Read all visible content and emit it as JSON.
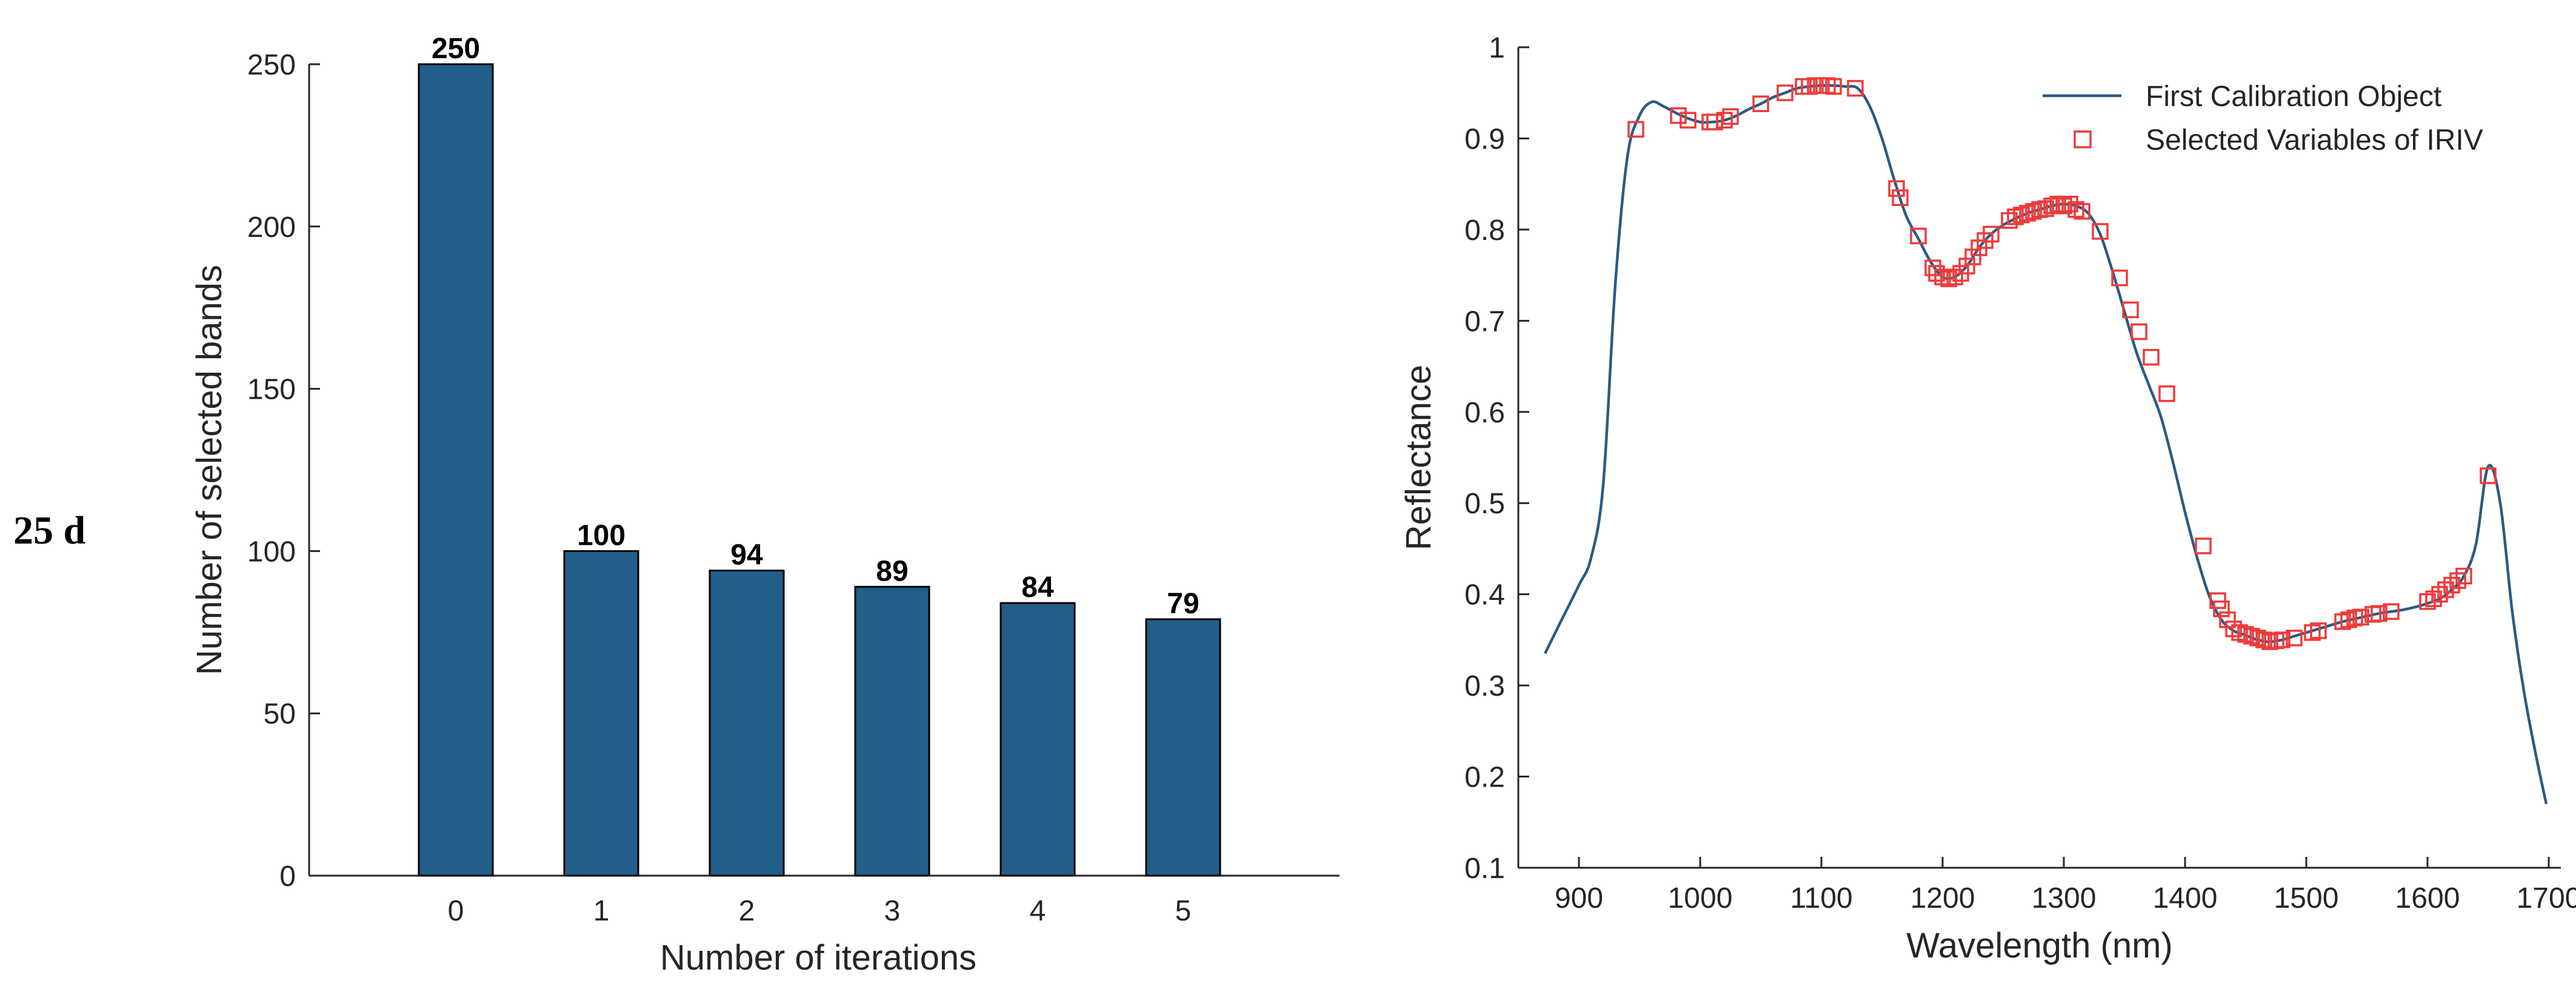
{
  "panel_label": "25 d",
  "colors": {
    "bar_fill": "#215E8A",
    "bar_stroke": "#000000",
    "line": "#2A5B84",
    "marker": "#EE3B3B",
    "axis": "#262626"
  },
  "chart_data": [
    {
      "type": "bar",
      "title": "",
      "categories": [
        "0",
        "1",
        "2",
        "3",
        "4",
        "5"
      ],
      "values": [
        250,
        100,
        94,
        89,
        84,
        79
      ],
      "data_labels": [
        "250",
        "100",
        "94",
        "89",
        "84",
        "79"
      ],
      "xlabel": "Number of iterations",
      "ylabel": "Number of selected bands",
      "ylim": [
        0,
        250
      ],
      "yticks": [
        0,
        50,
        100,
        150,
        200,
        250
      ],
      "ytick_labels": [
        "0",
        "50",
        "100",
        "150",
        "200",
        "250"
      ],
      "grid": false
    },
    {
      "type": "line",
      "title": "",
      "xlabel": "Wavelength (nm)",
      "ylabel": "Reflectance",
      "xlim": [
        850,
        1710
      ],
      "ylim": [
        0.1,
        1.0
      ],
      "xticks": [
        900,
        1000,
        1100,
        1200,
        1300,
        1400,
        1500,
        1600,
        1700
      ],
      "xtick_labels": [
        "900",
        "1000",
        "1100",
        "1200",
        "1300",
        "1400",
        "1500",
        "1600",
        "1700"
      ],
      "yticks": [
        0.1,
        0.2,
        0.3,
        0.4,
        0.5,
        0.6,
        0.7,
        0.8,
        0.9,
        1.0
      ],
      "ytick_labels": [
        "0.1",
        "0.2",
        "0.3",
        "0.4",
        "0.5",
        "0.6",
        "0.7",
        "0.8",
        "0.9",
        "1"
      ],
      "legend_position": "top-right",
      "grid": false,
      "series": [
        {
          "name": "First Calibration Object",
          "kind": "line",
          "x": [
            872,
            885,
            900,
            910,
            920,
            930,
            940,
            950,
            960,
            970,
            980,
            990,
            1000,
            1010,
            1020,
            1030,
            1040,
            1050,
            1060,
            1070,
            1080,
            1090,
            1100,
            1110,
            1120,
            1130,
            1140,
            1150,
            1160,
            1170,
            1180,
            1190,
            1200,
            1210,
            1220,
            1230,
            1240,
            1250,
            1260,
            1270,
            1280,
            1290,
            1300,
            1310,
            1320,
            1330,
            1340,
            1350,
            1360,
            1370,
            1380,
            1390,
            1400,
            1410,
            1420,
            1430,
            1440,
            1450,
            1460,
            1470,
            1480,
            1490,
            1500,
            1510,
            1520,
            1530,
            1540,
            1550,
            1560,
            1570,
            1580,
            1590,
            1600,
            1610,
            1620,
            1630,
            1640,
            1650,
            1660,
            1670,
            1680,
            1690,
            1698
          ],
          "y": [
            0.335,
            0.37,
            0.41,
            0.44,
            0.52,
            0.74,
            0.88,
            0.925,
            0.94,
            0.935,
            0.928,
            0.922,
            0.918,
            0.918,
            0.92,
            0.925,
            0.932,
            0.938,
            0.945,
            0.95,
            0.955,
            0.957,
            0.958,
            0.958,
            0.957,
            0.955,
            0.935,
            0.9,
            0.855,
            0.815,
            0.79,
            0.765,
            0.748,
            0.748,
            0.76,
            0.78,
            0.795,
            0.805,
            0.812,
            0.818,
            0.822,
            0.826,
            0.828,
            0.826,
            0.818,
            0.795,
            0.755,
            0.71,
            0.665,
            0.63,
            0.595,
            0.545,
            0.49,
            0.44,
            0.398,
            0.372,
            0.36,
            0.355,
            0.35,
            0.348,
            0.35,
            0.354,
            0.358,
            0.362,
            0.366,
            0.37,
            0.373,
            0.376,
            0.379,
            0.381,
            0.383,
            0.386,
            0.39,
            0.395,
            0.405,
            0.42,
            0.455,
            0.54,
            0.5,
            0.38,
            0.29,
            0.22,
            0.17
          ]
        },
        {
          "name": "Selected Variables of IRIV",
          "kind": "scatter",
          "marker": "square",
          "x": [
            947,
            982,
            990,
            1008,
            1012,
            1020,
            1025,
            1050,
            1070,
            1085,
            1090,
            1095,
            1100,
            1105,
            1110,
            1128,
            1162,
            1165,
            1180,
            1192,
            1195,
            1200,
            1205,
            1210,
            1215,
            1220,
            1225,
            1230,
            1235,
            1240,
            1255,
            1260,
            1265,
            1270,
            1275,
            1280,
            1285,
            1290,
            1295,
            1300,
            1305,
            1310,
            1315,
            1330,
            1346,
            1355,
            1362,
            1372,
            1385,
            1415,
            1427,
            1430,
            1435,
            1440,
            1445,
            1450,
            1455,
            1460,
            1465,
            1470,
            1475,
            1480,
            1490,
            1505,
            1510,
            1530,
            1535,
            1540,
            1545,
            1555,
            1560,
            1570,
            1600,
            1605,
            1610,
            1615,
            1620,
            1625,
            1630,
            1650
          ],
          "y": [
            0.91,
            0.925,
            0.92,
            0.918,
            0.918,
            0.92,
            0.924,
            0.938,
            0.95,
            0.957,
            0.957,
            0.958,
            0.958,
            0.958,
            0.957,
            0.955,
            0.845,
            0.835,
            0.793,
            0.758,
            0.752,
            0.748,
            0.746,
            0.748,
            0.752,
            0.76,
            0.77,
            0.78,
            0.788,
            0.795,
            0.81,
            0.814,
            0.816,
            0.818,
            0.82,
            0.822,
            0.823,
            0.826,
            0.828,
            0.826,
            0.828,
            0.822,
            0.82,
            0.798,
            0.747,
            0.712,
            0.688,
            0.66,
            0.62,
            0.453,
            0.393,
            0.384,
            0.372,
            0.362,
            0.358,
            0.356,
            0.354,
            0.352,
            0.35,
            0.348,
            0.349,
            0.35,
            0.352,
            0.358,
            0.36,
            0.37,
            0.372,
            0.374,
            0.375,
            0.378,
            0.379,
            0.381,
            0.392,
            0.395,
            0.4,
            0.405,
            0.41,
            0.415,
            0.42,
            0.53
          ]
        }
      ]
    }
  ]
}
